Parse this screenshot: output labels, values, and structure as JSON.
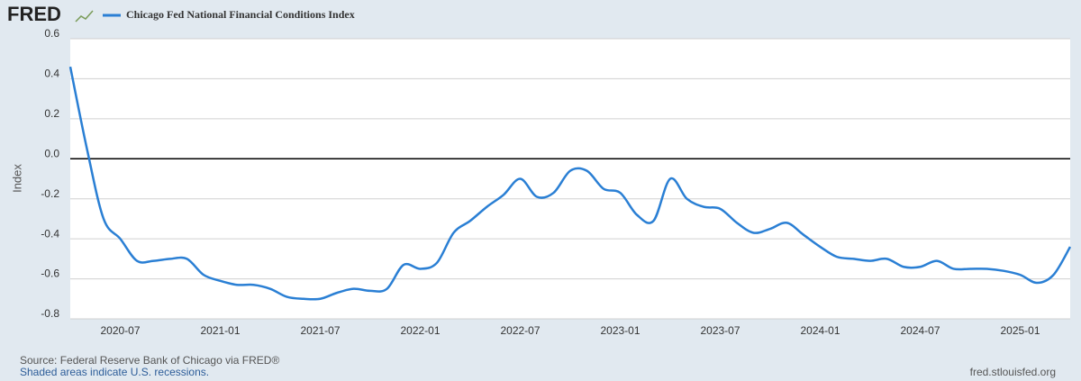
{
  "chart_data": {
    "type": "line",
    "logo": "FRED",
    "ylabel": "Index",
    "source": "Source: Federal Reserve Bank of Chicago via FRED®",
    "note": "Shaded areas indicate U.S. recessions.",
    "url": "fred.stlouisfed.org",
    "x": [
      "2020-04",
      "2020-05",
      "2020-06",
      "2020-07",
      "2020-08",
      "2020-09",
      "2020-10",
      "2020-11",
      "2020-12",
      "2021-01",
      "2021-02",
      "2021-03",
      "2021-04",
      "2021-05",
      "2021-06",
      "2021-07",
      "2021-08",
      "2021-09",
      "2021-10",
      "2021-11",
      "2021-12",
      "2022-01",
      "2022-02",
      "2022-03",
      "2022-04",
      "2022-05",
      "2022-06",
      "2022-07",
      "2022-08",
      "2022-09",
      "2022-10",
      "2022-11",
      "2022-12",
      "2023-01",
      "2023-02",
      "2023-03",
      "2023-04",
      "2023-05",
      "2023-06",
      "2023-07",
      "2023-08",
      "2023-09",
      "2023-10",
      "2023-11",
      "2023-12",
      "2024-01",
      "2024-02",
      "2024-03",
      "2024-04",
      "2024-05",
      "2024-06",
      "2024-07",
      "2024-08",
      "2024-09",
      "2024-10",
      "2024-11",
      "2024-12",
      "2025-01",
      "2025-02",
      "2025-03",
      "2025-04"
    ],
    "series": [
      {
        "name": "Chicago Fed National Financial Conditions Index",
        "color": "#2a7fd4",
        "values": [
          0.46,
          0.05,
          -0.3,
          -0.4,
          -0.51,
          -0.51,
          -0.5,
          -0.5,
          -0.58,
          -0.61,
          -0.63,
          -0.63,
          -0.65,
          -0.69,
          -0.7,
          -0.7,
          -0.67,
          -0.65,
          -0.66,
          -0.65,
          -0.53,
          -0.55,
          -0.52,
          -0.37,
          -0.31,
          -0.24,
          -0.18,
          -0.1,
          -0.19,
          -0.17,
          -0.06,
          -0.06,
          -0.15,
          -0.17,
          -0.28,
          -0.31,
          -0.1,
          -0.2,
          -0.24,
          -0.25,
          -0.32,
          -0.37,
          -0.35,
          -0.32,
          -0.38,
          -0.44,
          -0.49,
          -0.5,
          -0.51,
          -0.5,
          -0.54,
          -0.54,
          -0.51,
          -0.55,
          -0.55,
          -0.55,
          -0.56,
          -0.58,
          -0.62,
          -0.58,
          -0.44
        ]
      }
    ],
    "xlim": [
      "2020-04",
      "2025-04"
    ],
    "xticks": [
      "2020-07",
      "2021-01",
      "2021-07",
      "2022-01",
      "2022-07",
      "2023-01",
      "2023-07",
      "2024-01",
      "2024-07",
      "2025-01"
    ],
    "ylim": [
      -0.8,
      0.6
    ],
    "yticks": [
      0.6,
      0.4,
      0.2,
      {
        "value": 0,
        "label": "0.0"
      },
      -0.2,
      -0.4,
      -0.6,
      -0.8
    ],
    "grid": true,
    "zero_line_color": "#000000"
  }
}
